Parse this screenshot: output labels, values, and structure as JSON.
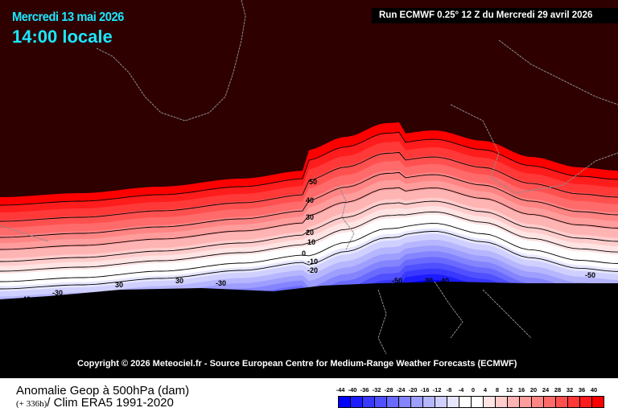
{
  "header": {
    "date": "Mercredi 13 mai 2026",
    "time": "14:00 locale",
    "run": "Run ECMWF 0.25° 12 Z du Mercredi 29 avril 2026"
  },
  "copyright": "Copyright © 2026 Meteociel.fr - Source European Centre for Medium-Range Weather Forecasts (ECMWF)",
  "footer": {
    "title": "Anomalie Geop à 500hPa (dam)",
    "lead": "(+ 336h)",
    "clim": "/ Clim ERA5 1991-2020"
  },
  "legend": {
    "ticks": [
      "-44",
      "-40",
      "-36",
      "-32",
      "-28",
      "-24",
      "-20",
      "-16",
      "-12",
      "-8",
      "-4",
      "0",
      "4",
      "8",
      "12",
      "16",
      "20",
      "24",
      "28",
      "32",
      "36",
      "40"
    ],
    "colors": [
      "#0000ff",
      "#1c1cff",
      "#3838ff",
      "#5050ff",
      "#6a6aff",
      "#8484ff",
      "#9e9eff",
      "#b6b6ff",
      "#d0d0ff",
      "#e6e6ff",
      "#ffffff",
      "#ffffff",
      "#ffe4e4",
      "#ffcccc",
      "#ffb4b4",
      "#ff9c9c",
      "#ff8484",
      "#ff6a6a",
      "#ff5050",
      "#ff3838",
      "#ff1c1c",
      "#ff0000"
    ]
  },
  "contour_labels": [
    "50",
    "40",
    "30",
    "20",
    "10",
    "0",
    "-10",
    "-20",
    "-40",
    "-30",
    "30",
    "30",
    "-30",
    "-50",
    "-50",
    "30",
    "40",
    "-50"
  ],
  "colors": {
    "background": "#2e0000",
    "land_lines": "#8c8c8c",
    "title": "#19e8ff"
  }
}
